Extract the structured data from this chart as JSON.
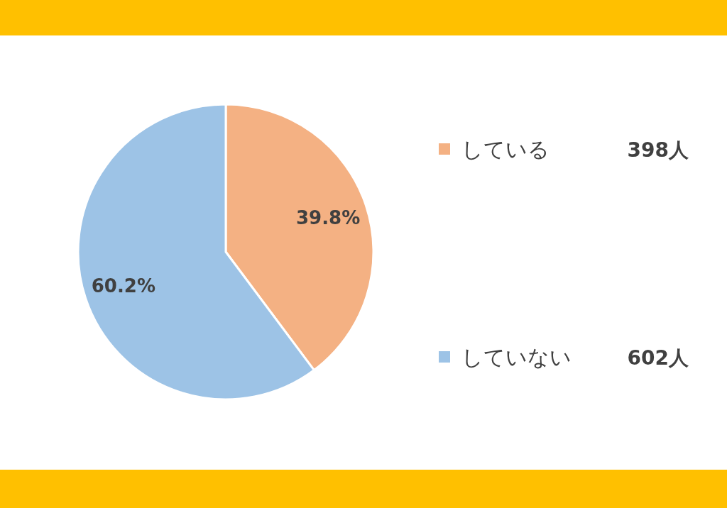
{
  "chart_data": {
    "type": "pie",
    "categories": [
      "している",
      "していない"
    ],
    "values": [
      39.8,
      60.2
    ],
    "colors": [
      "#f4b183",
      "#9dc3e6"
    ],
    "value_labels": [
      "39.8%",
      "60.2%"
    ],
    "legend": "right",
    "annotations": [
      "398人",
      "602人"
    ]
  }
}
